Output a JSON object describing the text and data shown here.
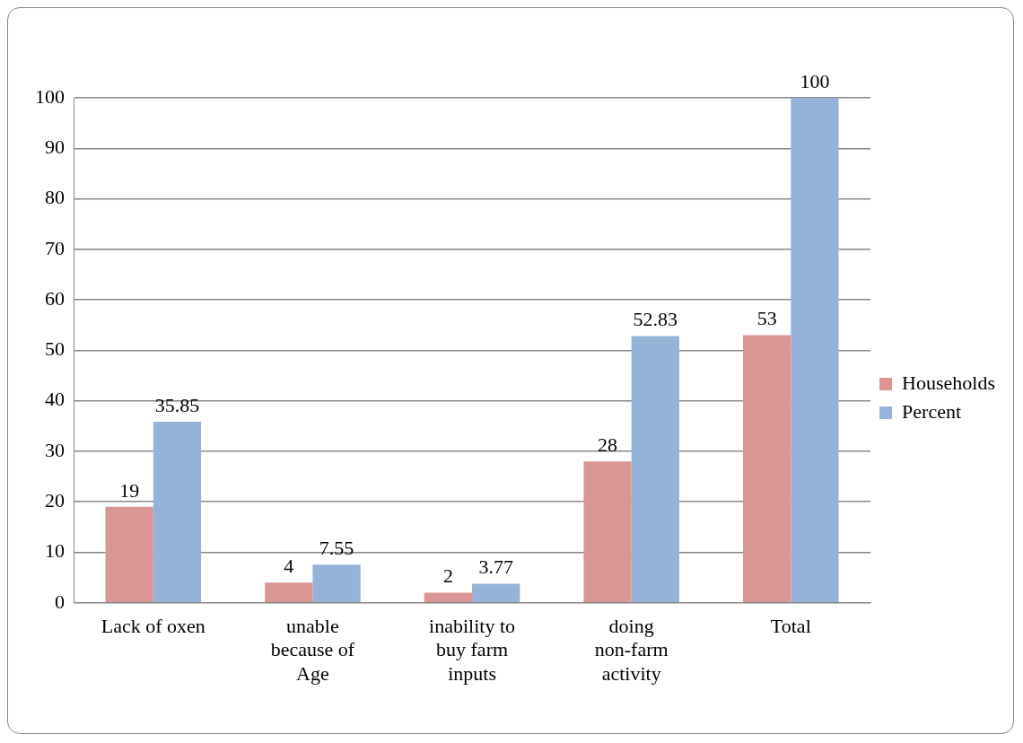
{
  "chart_data": {
    "type": "bar",
    "categories": [
      "Lack of oxen",
      "unable because of Age",
      "inability to buy farm inputs",
      "doing non-farm activity",
      "Total"
    ],
    "series": [
      {
        "name": "Households",
        "color": "#d99694",
        "values": [
          19,
          4,
          2,
          28,
          53
        ]
      },
      {
        "name": "Percent",
        "color": "#95b3d7",
        "values": [
          35.85,
          7.55,
          3.77,
          52.83,
          100
        ]
      }
    ],
    "ylim": [
      0,
      100
    ],
    "yticks": [
      0,
      10,
      20,
      30,
      40,
      50,
      60,
      70,
      80,
      90,
      100
    ],
    "grid": "y",
    "legend": "right",
    "data_labels": true
  }
}
